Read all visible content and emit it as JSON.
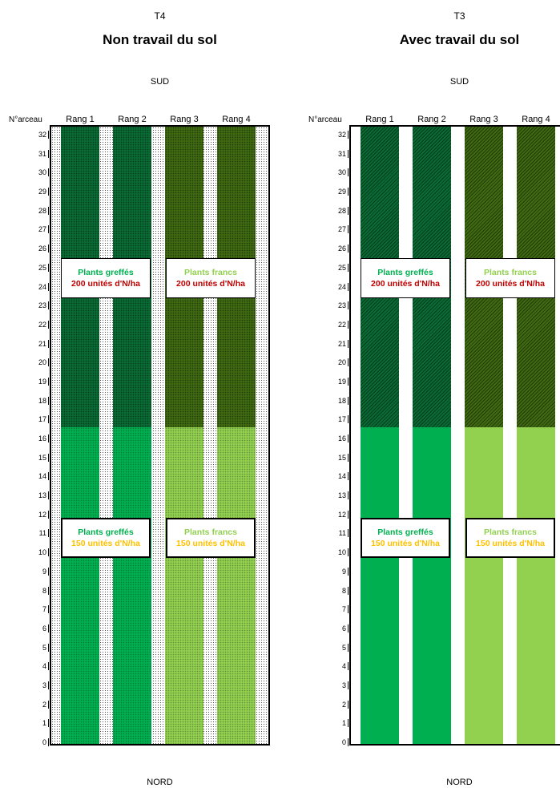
{
  "panels": [
    {
      "code": "T4",
      "title": "Non travail du sol",
      "south": "SUD",
      "north": "NORD",
      "arceau_header": "N°arceau",
      "rows": [
        "Rang 1",
        "Rang 2",
        "Rang 3",
        "Rang 4"
      ],
      "arceaux": [
        "32",
        "31",
        "30",
        "29",
        "28",
        "27",
        "26",
        "25",
        "24",
        "23",
        "22",
        "21",
        "20",
        "19",
        "18",
        "17",
        "16",
        "15",
        "14",
        "13",
        "12",
        "11",
        "10",
        "9",
        "8",
        "7",
        "6",
        "5",
        "4",
        "3",
        "2",
        "1",
        "0"
      ],
      "texture": "stipple",
      "labels": {
        "top_left": {
          "plant": "Plants greffés",
          "dose": "200 unités d'N/ha"
        },
        "top_right": {
          "plant": "Plants francs",
          "dose": "200 unités d'N/ha"
        },
        "bottom_left": {
          "plant": "Plants greffés",
          "dose": "150 unités d'N/ha"
        },
        "bottom_right": {
          "plant": "Plants francs",
          "dose": "150 unités d'N/ha"
        }
      }
    },
    {
      "code": "T3",
      "title": "Avec travail du sol",
      "south": "SUD",
      "north": "NORD",
      "arceau_header": "N°arceau",
      "rows": [
        "Rang 1",
        "Rang 2",
        "Rang 3",
        "Rang 4"
      ],
      "arceaux": [
        "32",
        "31",
        "30",
        "29",
        "28",
        "27",
        "26",
        "25",
        "24",
        "23",
        "22",
        "21",
        "20",
        "19",
        "18",
        "17",
        "16",
        "15",
        "14",
        "13",
        "12",
        "11",
        "10",
        "9",
        "8",
        "7",
        "6",
        "5",
        "4",
        "3",
        "2",
        "1",
        "0"
      ],
      "texture": "hatch",
      "labels": {
        "top_left": {
          "plant": "Plants greffés",
          "dose": "200 unités d'N/ha"
        },
        "top_right": {
          "plant": "Plants francs",
          "dose": "200 unités d'N/ha"
        },
        "bottom_left": {
          "plant": "Plants greffés",
          "dose": "150 unités d'N/ha"
        },
        "bottom_right": {
          "plant": "Plants francs",
          "dose": "150 unités d'N/ha"
        }
      }
    }
  ],
  "colors": {
    "grafted_200": "#0a6b34",
    "ungrafted_200": "#3f6a12",
    "grafted_150": "#00b050",
    "ungrafted_150": "#92d050",
    "text_grafted": "#00b050",
    "text_ungrafted": "#92d050",
    "text_dose_200": "#c00000",
    "text_dose_150": "#ffc000"
  }
}
